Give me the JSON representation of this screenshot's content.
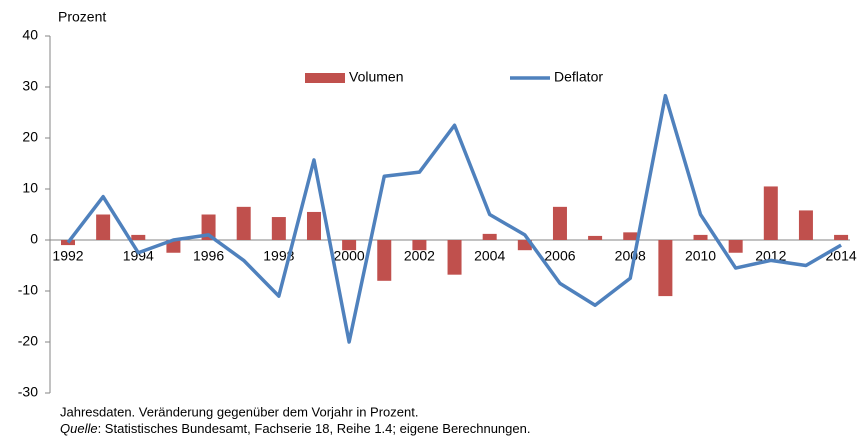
{
  "chart_data": {
    "type": "bar_line",
    "y_label": "Prozent",
    "categories": [
      "1992",
      null,
      "1994",
      null,
      "1996",
      null,
      "1998",
      null,
      "2000",
      null,
      "2002",
      null,
      "2004",
      null,
      "2006",
      null,
      "2008",
      null,
      "2010",
      null,
      "2012",
      null,
      "2014"
    ],
    "series": [
      {
        "name": "Volumen",
        "type": "bar",
        "color": "#c0504d",
        "values": [
          -1,
          5,
          1,
          -2.5,
          5,
          6.5,
          4.5,
          5.5,
          -2,
          -8,
          -2,
          -6.8,
          1.2,
          -2,
          6.5,
          0.8,
          1.5,
          -11,
          1,
          -2.5,
          10.5,
          5.8,
          1
        ]
      },
      {
        "name": "Deflator",
        "type": "line",
        "color": "#4f81bd",
        "values": [
          -0.5,
          8.5,
          -2.5,
          0,
          1,
          -4,
          -11,
          15.7,
          -20,
          12.5,
          13.3,
          22.5,
          5,
          1,
          -8.5,
          -12.8,
          -7.5,
          28.3,
          5,
          -5.5,
          -4,
          -5,
          -1
        ]
      }
    ],
    "ylim": [
      -30,
      40
    ],
    "yticks": [
      -30,
      -20,
      -10,
      0,
      10,
      20,
      30,
      40
    ],
    "grid": false,
    "legend": "top",
    "note": "Jahresdaten. Veränderung gegenüber dem Vorjahr in Prozent.",
    "source_label": "Quelle",
    "source": ": Statistisches  Bundesamt,  Fachserie 18,  Reihe 1.4; eigene Berechnungen."
  }
}
